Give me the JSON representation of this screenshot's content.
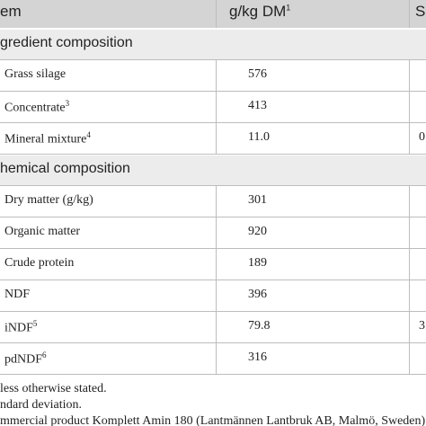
{
  "table": {
    "header": [
      {
        "text": "em"
      },
      {
        "text": "g/kg DM",
        "sup": "1"
      },
      {
        "text": "S"
      }
    ],
    "sections": [
      {
        "title": "gredient composition",
        "rows": [
          {
            "label": "Grass silage",
            "value": "576"
          },
          {
            "label": "Concentrate",
            "sup": "3",
            "value": "413"
          },
          {
            "label": "Mineral mixture",
            "sup": "4",
            "value": "11.0",
            "extra": "0"
          }
        ]
      },
      {
        "title": "hemical composition",
        "rows": [
          {
            "label": "Dry matter (g/kg)",
            "value": "301"
          },
          {
            "label": "Organic matter",
            "value": "920"
          },
          {
            "label": "Crude protein",
            "value": "189"
          },
          {
            "label": "NDF",
            "value": "396"
          },
          {
            "label": "iNDF",
            "sup": "5",
            "value": "79.8",
            "extra": "3"
          },
          {
            "label": "pdNDF",
            "sup": "6",
            "value": "316"
          }
        ]
      }
    ]
  },
  "footnotes": [
    "less otherwise stated.",
    "ndard deviation.",
    "mmercial product Komplett Amin 180 (Lantmännen Lantbruk AB, Malmö, Sweden)"
  ]
}
